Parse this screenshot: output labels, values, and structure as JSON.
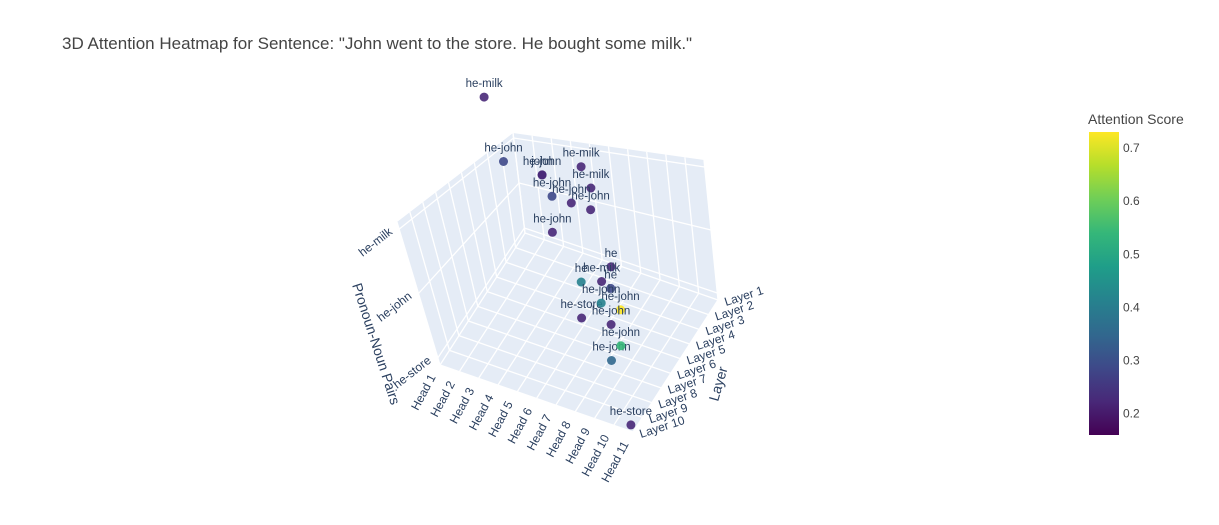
{
  "chart_data": {
    "type": "scatter",
    "title": "3D Attention Heatmap for Sentence: \"John went to the store. He bought some milk.\"",
    "axes": {
      "x": {
        "label": "",
        "ticks": [
          "Head 1",
          "Head 2",
          "Head 3",
          "Head 4",
          "Head 5",
          "Head 6",
          "Head 7",
          "Head 8",
          "Head 9",
          "Head 10",
          "Head 11"
        ]
      },
      "y": {
        "label": "Layer",
        "ticks": [
          "Layer 1",
          "Layer 2",
          "Layer 3",
          "Layer 4",
          "Layer 5",
          "Layer 6",
          "Layer 7",
          "Layer 8",
          "Layer 9",
          "Layer 10"
        ]
      },
      "z": {
        "label": "Pronoun-Noun Pairs",
        "ticks": [
          "he-store",
          "he-john",
          "he-milk"
        ]
      }
    },
    "colorbar": {
      "title": "Attention Score",
      "colorscale": [
        "#440154",
        "#482878",
        "#3e4989",
        "#31688e",
        "#26828e",
        "#1f9e89",
        "#35b779",
        "#6ece58",
        "#b5de2b",
        "#fde725"
      ],
      "range": [
        0.16,
        0.73
      ],
      "ticks": [
        "0.2",
        "0.3",
        "0.4",
        "0.5",
        "0.6",
        "0.7"
      ]
    },
    "points": [
      {
        "text": "he-milk",
        "head": 1,
        "layer": 10,
        "pair": "he-milk",
        "score": 0.22
      },
      {
        "text": "he-milk",
        "head": 7,
        "layer": 8,
        "pair": "he-milk",
        "score": 0.24
      },
      {
        "text": "he-milk",
        "head": 8,
        "layer": 7,
        "pair": "he-milk",
        "score": 0.22
      },
      {
        "text": "he-john",
        "head": 3,
        "layer": 10,
        "pair": "he-john",
        "score": 0.2
      },
      {
        "text": "he-john",
        "head": 5,
        "layer": 9,
        "pair": "he-john",
        "score": 0.2
      },
      {
        "text": "he",
        "head": 9,
        "layer": 5,
        "pair": "he-john",
        "score": 0.3
      },
      {
        "text": "he",
        "head": 11,
        "layer": 3,
        "pair": "he-milk",
        "score": 0.2
      },
      {
        "text": "he-milk",
        "head": 11,
        "layer": 2,
        "pair": "he-milk",
        "score": 0.2
      },
      {
        "text": "he-john",
        "head": 10,
        "layer": 4,
        "pair": "he-john",
        "score": 0.73
      },
      {
        "text": "he-john",
        "head": 11,
        "layer": 1,
        "pair": "he-john",
        "score": 0.32
      },
      {
        "text": "he-john",
        "head": 11,
        "layer": 2,
        "pair": "he-john",
        "score": 0.52
      },
      {
        "text": "john",
        "head": 3,
        "layer": 10,
        "pair": "he-john",
        "score": 0.25
      },
      {
        "text": "he-john",
        "head": 4,
        "layer": 9,
        "pair": "he-john",
        "score": 0.26
      },
      {
        "text": "he-john",
        "head": 6,
        "layer": 9,
        "pair": "he-john",
        "score": 0.2
      },
      {
        "text": "he",
        "head": 5,
        "layer": 8,
        "pair": "he-store",
        "score": 0.4
      },
      {
        "text": "he-john",
        "head": 5,
        "layer": 7,
        "pair": "he-john",
        "score": 0.22
      },
      {
        "text": "he-john",
        "head": 1,
        "layer": 10,
        "pair": "he-john",
        "score": 0.3
      },
      {
        "text": "he-john",
        "head": 10,
        "layer": 3,
        "pair": "he-john",
        "score": 0.24
      },
      {
        "text": "he-store",
        "head": 6,
        "layer": 6,
        "pair": "he-store",
        "score": 0.22
      },
      {
        "text": "he-john",
        "head": 9,
        "layer": 4,
        "pair": "he-john",
        "score": 0.44
      },
      {
        "text": "he-store",
        "head": 11,
        "layer": 1,
        "pair": "he-store",
        "score": 0.22
      }
    ]
  }
}
